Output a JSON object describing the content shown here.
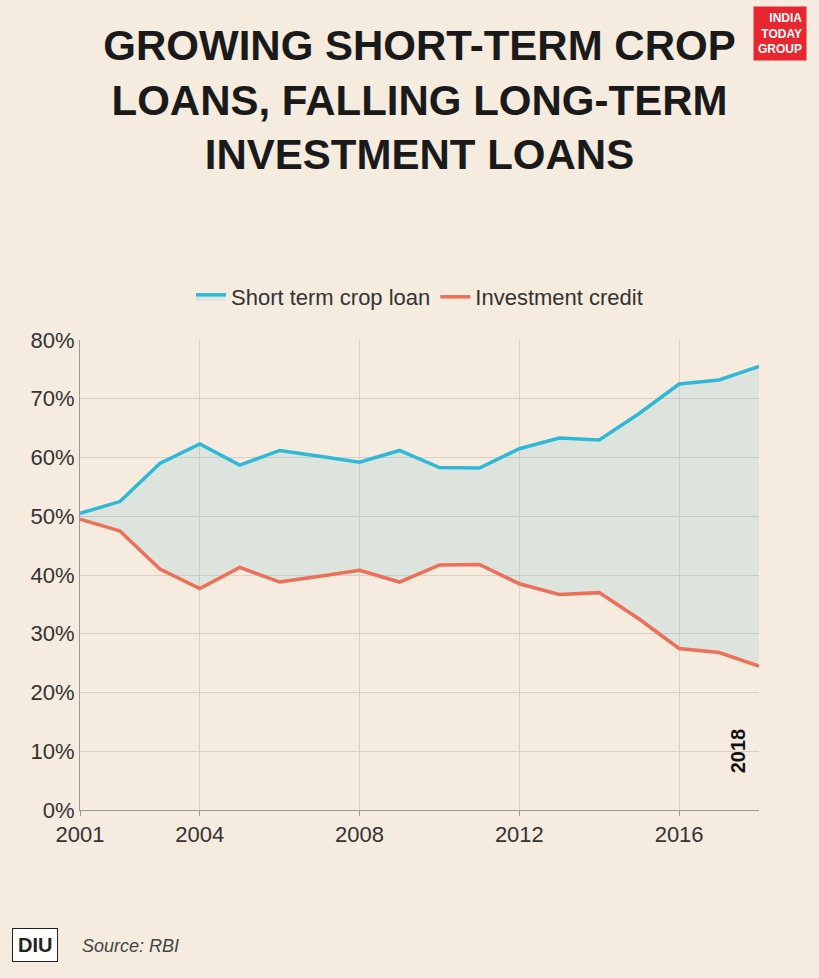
{
  "chart_data": {
    "type": "line",
    "title": "GROWING SHORT-TERM CROP LOANS, FALLING LONG-TERM INVESTMENT LOANS",
    "x": [
      2001,
      2002,
      2003,
      2004,
      2005,
      2006,
      2007,
      2008,
      2009,
      2010,
      2011,
      2012,
      2013,
      2014,
      2015,
      2016,
      2017,
      2018
    ],
    "series": [
      {
        "name": "Short term crop loan",
        "color": "#2fb8d8",
        "values": [
          50.5,
          52.5,
          59,
          62.3,
          58.7,
          61.2,
          60.2,
          59.2,
          61.2,
          58.3,
          58.2,
          61.5,
          63.3,
          63,
          67.5,
          72.5,
          73.2,
          75.5
        ]
      },
      {
        "name": "Investment credit",
        "color": "#ee6f57",
        "values": [
          49.5,
          47.5,
          41,
          37.7,
          41.3,
          38.8,
          39.8,
          40.8,
          38.8,
          41.7,
          41.8,
          38.5,
          36.7,
          37,
          32.5,
          27.5,
          26.8,
          24.5
        ]
      }
    ],
    "xlim": [
      2001,
      2018
    ],
    "xticks": [
      2001,
      2004,
      2008,
      2012,
      2016
    ],
    "ylim": [
      0,
      80
    ],
    "yticks": [
      {
        "value": 0,
        "label": "0%"
      },
      {
        "value": 10,
        "label": "10%"
      },
      {
        "value": 20,
        "label": "20%"
      },
      {
        "value": 30,
        "label": "30%"
      },
      {
        "value": 40,
        "label": "40%"
      },
      {
        "value": 50,
        "label": "50%"
      },
      {
        "value": 60,
        "label": "60%"
      },
      {
        "value": 70,
        "label": "70%"
      },
      {
        "value": 80,
        "label": "80%"
      }
    ],
    "grid": true,
    "legend": "top",
    "annotations": [
      {
        "text": "2018",
        "x": 2018,
        "y": 10
      }
    ],
    "source": "Source: RBI",
    "logos": [
      "INDIA TODAY GROUP",
      "DIU"
    ]
  }
}
